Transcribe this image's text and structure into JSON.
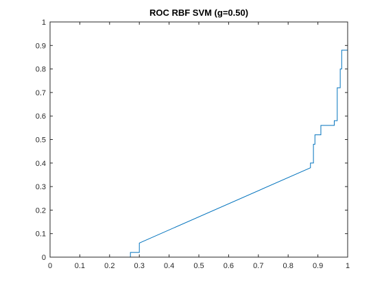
{
  "chart_data": {
    "type": "line",
    "title": "ROC RBF SVM (g=0.50)",
    "xlabel": "",
    "ylabel": "",
    "xlim": [
      0,
      1
    ],
    "ylim": [
      0,
      1
    ],
    "grid": false,
    "x_ticks": [
      "0",
      "0.1",
      "0.2",
      "0.3",
      "0.4",
      "0.5",
      "0.6",
      "0.7",
      "0.8",
      "0.9",
      "1"
    ],
    "y_ticks": [
      "0",
      "0.1",
      "0.2",
      "0.3",
      "0.4",
      "0.5",
      "0.6",
      "0.7",
      "0.8",
      "0.9",
      "1"
    ],
    "series": [
      {
        "color": "#0072BD",
        "points": [
          [
            0,
            0
          ],
          [
            0.27,
            0
          ],
          [
            0.27,
            0.02
          ],
          [
            0.3,
            0.02
          ],
          [
            0.3,
            0.06
          ],
          [
            0.875,
            0.38
          ],
          [
            0.875,
            0.4
          ],
          [
            0.885,
            0.4
          ],
          [
            0.885,
            0.48
          ],
          [
            0.89,
            0.48
          ],
          [
            0.89,
            0.52
          ],
          [
            0.91,
            0.52
          ],
          [
            0.91,
            0.56
          ],
          [
            0.955,
            0.56
          ],
          [
            0.955,
            0.58
          ],
          [
            0.965,
            0.58
          ],
          [
            0.965,
            0.72
          ],
          [
            0.975,
            0.72
          ],
          [
            0.975,
            0.8
          ],
          [
            0.98,
            0.8
          ],
          [
            0.98,
            0.88
          ],
          [
            1.0,
            0.88
          ],
          [
            1.0,
            1.0
          ]
        ]
      }
    ]
  }
}
